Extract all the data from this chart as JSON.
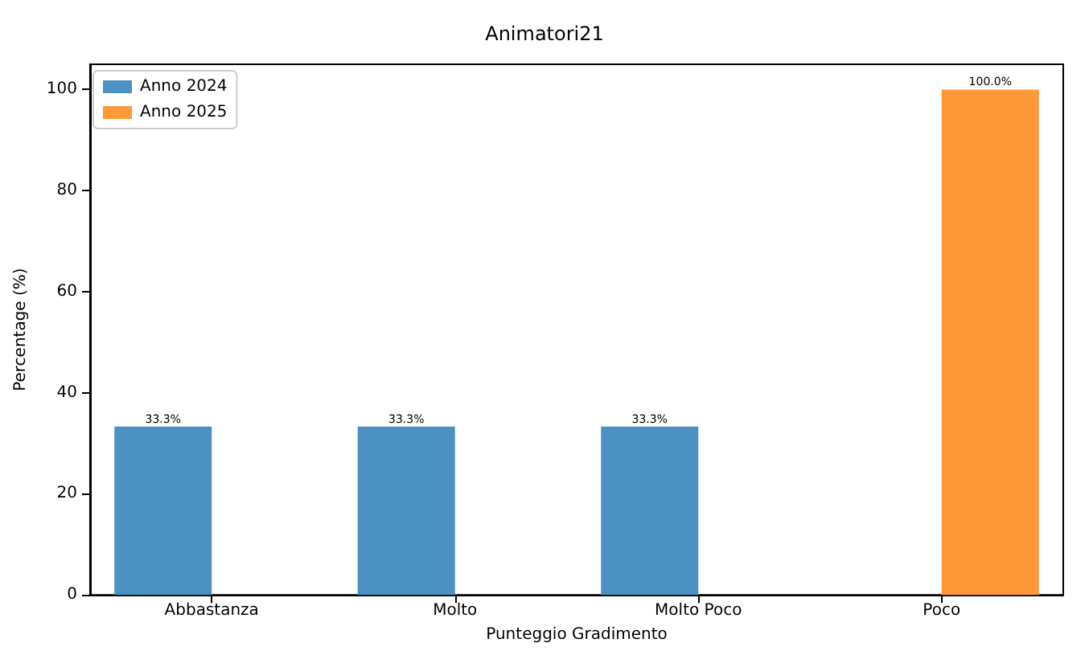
{
  "chart_data": {
    "type": "bar",
    "title": "Animatori21",
    "xlabel": "Punteggio Gradimento",
    "ylabel": "Percentage (%)",
    "categories": [
      "Abbastanza",
      "Molto",
      "Molto Poco",
      "Poco"
    ],
    "series": [
      {
        "name": "Anno 2024",
        "color": "#4b92c3",
        "values": [
          33.3,
          33.3,
          33.3,
          0
        ],
        "value_labels": [
          "33.3%",
          "33.3%",
          "33.3%",
          null
        ]
      },
      {
        "name": "Anno 2025",
        "color": "#ff9839",
        "values": [
          0,
          0,
          0,
          100
        ],
        "value_labels": [
          null,
          null,
          null,
          "100.0%"
        ]
      }
    ],
    "ylim": [
      0,
      105
    ],
    "yticks": [
      0,
      20,
      40,
      60,
      80,
      100
    ],
    "grid": false,
    "legend": "top left"
  }
}
